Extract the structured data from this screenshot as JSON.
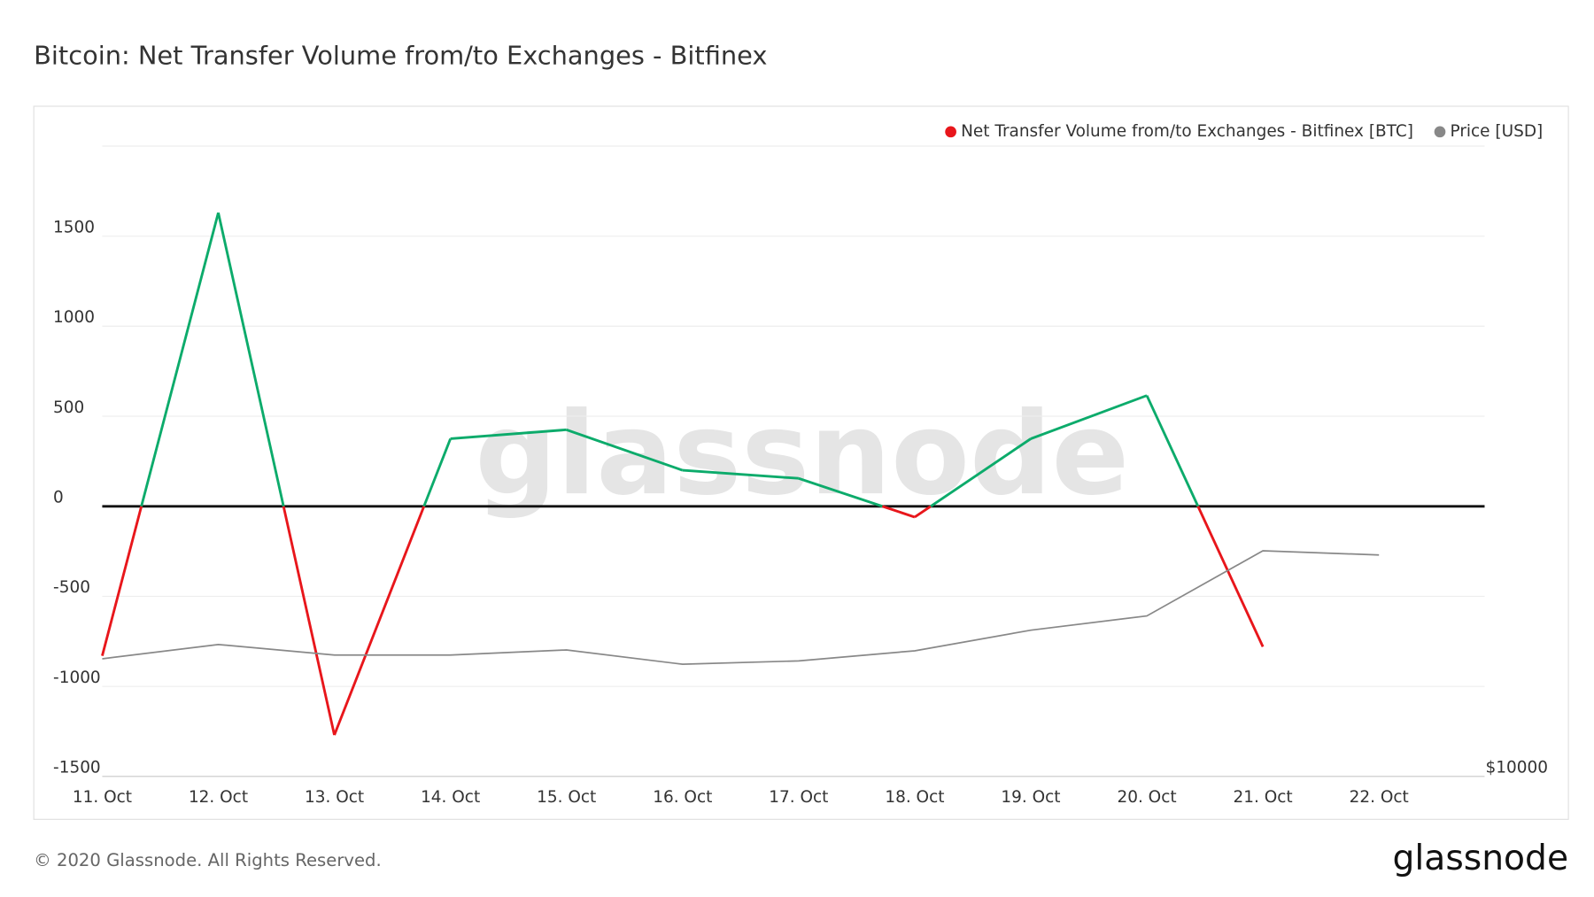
{
  "chart_data": {
    "type": "line",
    "title": "Bitcoin: Net Transfer Volume from/to Exchanges - Bitfinex",
    "categories": [
      "11. Oct",
      "12. Oct",
      "13. Oct",
      "14. Oct",
      "15. Oct",
      "16. Oct",
      "17. Oct",
      "18. Oct",
      "19. Oct",
      "20. Oct",
      "21. Oct",
      "22. Oct"
    ],
    "series": [
      {
        "name": "Net Transfer Volume from/to Exchanges - Bitfinex [BTC]",
        "color": "#e8161b",
        "positive_color": "#0cab6b",
        "values": [
          -830,
          1630,
          -1270,
          375,
          425,
          200,
          155,
          -60,
          375,
          615,
          -780,
          null
        ]
      },
      {
        "name": "Price [USD]",
        "color": "#888888",
        "axis": "y2",
        "values": [
          11400,
          11570,
          11445,
          11445,
          11505,
          11335,
          11375,
          11495,
          11740,
          11910,
          12685,
          12635
        ]
      }
    ],
    "ylim": [
      -1500,
      2000
    ],
    "yticks": [
      -1500,
      -1000,
      -500,
      0,
      500,
      1000,
      1500
    ],
    "y2lim": [
      10000,
      17500
    ],
    "y2ticks": [
      {
        "value": 10000,
        "label": "$10000"
      }
    ],
    "grid": true,
    "zero_line": true,
    "legend": "top-right",
    "watermark": "glassnode",
    "footer": "© 2020 Glassnode. All Rights Reserved.",
    "logo": "glassnode"
  }
}
